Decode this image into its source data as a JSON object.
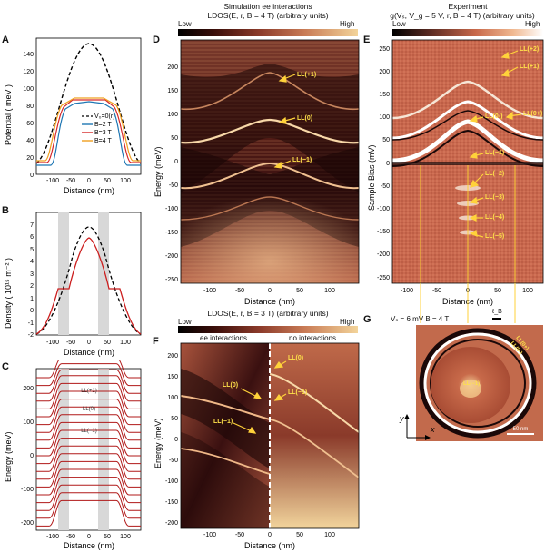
{
  "panels": {
    "A": {
      "label": "A",
      "ylabel": "Potential ( meV )",
      "xlabel": "Distance (nm)",
      "legend": [
        "V₀=0(r)",
        "B=2 T",
        "B=3 T",
        "B=4 T"
      ],
      "yticks": [
        "0",
        "20",
        "40",
        "60",
        "80",
        "100",
        "120",
        "140"
      ],
      "xticks": [
        "-100",
        "-50",
        "0",
        "50",
        "100"
      ],
      "colors": [
        "#000000",
        "#1f77b4",
        "#d62728",
        "#f0a020"
      ]
    },
    "B": {
      "label": "B",
      "ylabel": "Density ( 10¹⁵ m⁻² )",
      "xlabel": "Distance (nm)",
      "yticks": [
        "-2",
        "-1",
        "0",
        "1",
        "2",
        "3",
        "4",
        "5",
        "6",
        "7"
      ],
      "xticks": [
        "-100",
        "-50",
        "0",
        "50",
        "100"
      ]
    },
    "C": {
      "label": "C",
      "ylabel": "Energy (meV)",
      "xlabel": "Distance (nm)",
      "yticks": [
        "-200",
        "-100",
        "0",
        "100",
        "200"
      ],
      "xticks": [
        "-100",
        "-50",
        "0",
        "50",
        "100"
      ],
      "ll_labels": [
        "LL(+1)",
        "LL(0)",
        "LL(−1)"
      ]
    },
    "D": {
      "label": "D",
      "title": "Simulation ee interactions",
      "subtitle": "LDOS(E, r, B = 4 T) (arbitrary units)",
      "cb_low": "Low",
      "cb_high": "High",
      "ylabel": "Energy (meV)",
      "xlabel": "Distance (nm)",
      "yticks": [
        "200",
        "150",
        "100",
        "50",
        "0",
        "-50",
        "-100",
        "-150",
        "-200",
        "-250"
      ],
      "xticks": [
        "-100",
        "-50",
        "0",
        "50",
        "100"
      ],
      "annotations": [
        "LL(+1)",
        "LL(0)",
        "LL(−1)"
      ]
    },
    "E": {
      "label": "E",
      "title": "Experiment",
      "subtitle": "g(Vₛ, V_g = 5 V, r, B = 4 T) (arbitrary units)",
      "cb_low": "Low",
      "cb_high": "High",
      "ylabel": "Sample Bias (mV)",
      "xlabel": "Distance (nm)",
      "yticks": [
        "250",
        "200",
        "150",
        "100",
        "50",
        "0",
        "-50",
        "-100",
        "-150",
        "-200",
        "-250"
      ],
      "xticks": [
        "-100",
        "-50",
        "0",
        "50",
        "100"
      ],
      "annotations": [
        "LL(+2)",
        "LL(+1)",
        "LL(0+)",
        "LL(0-)",
        "LL(−1)",
        "LL(−2)",
        "LL(−3)",
        "LL(−4)",
        "LL(−5)"
      ]
    },
    "F": {
      "label": "F",
      "subtitle": "LDOS(E, r, B = 3 T)  (arbitrary units)",
      "cb_low": "Low",
      "cb_high": "High",
      "left_title": "ee interactions",
      "right_title": "no interactions",
      "ylabel": "Energy (meV)",
      "xlabel": "Distance (nm)",
      "yticks": [
        "200",
        "150",
        "100",
        "50",
        "0",
        "-50",
        "-100",
        "-150",
        "-200"
      ],
      "xticks": [
        "-100",
        "-50",
        "0",
        "50",
        "100"
      ],
      "annotations": [
        "LL(0)",
        "LL(0)",
        "LL(−1)",
        "LL(−1)"
      ]
    },
    "G": {
      "label": "G",
      "info": "Vₛ = 6 mV   B = 4 T",
      "lb": "ℓ_B",
      "annotations": [
        "LL(0+)",
        "LL(0-)",
        "LL(−1)"
      ],
      "scalebar": "50 nm",
      "axis_x": "x",
      "axis_y": "y"
    }
  }
}
